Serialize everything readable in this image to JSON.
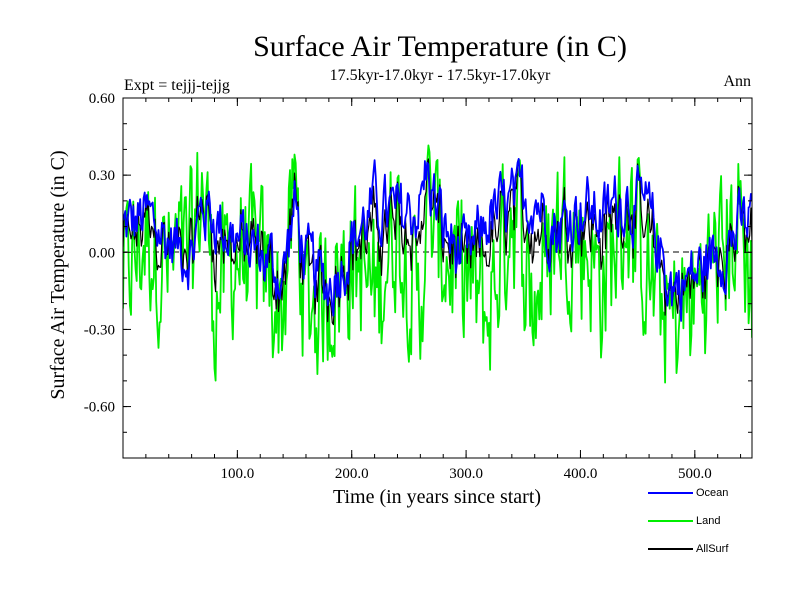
{
  "chart_data": {
    "type": "line",
    "title": "Surface Air Temperature (in C)",
    "subtitle": "17.5kyr-17.0kyr - 17.5kyr-17.0kyr",
    "expt_label": "Expt = tejjj-tejjg",
    "season_label": "Ann",
    "xlabel": "Time (in years since start)",
    "ylabel": "Surface Air Temperature (in C)",
    "xlim": [
      0,
      550
    ],
    "ylim": [
      -0.8,
      0.6
    ],
    "x_ticks": [
      100,
      200,
      300,
      400,
      500
    ],
    "x_tick_labels": [
      "100.0",
      "200.0",
      "300.0",
      "400.0",
      "500.0"
    ],
    "y_ticks": [
      0.6,
      0.3,
      0.0,
      -0.3,
      -0.6
    ],
    "y_tick_labels": [
      "0.60",
      "0.30",
      "0.00",
      "-0.30",
      "-0.60"
    ],
    "legend_position": "bottom-right, below plot",
    "series": [
      {
        "name": "Ocean",
        "color": "#0000ff",
        "amplitude": 0.17,
        "offset": 0.04
      },
      {
        "name": "Land",
        "color": "#00ee00",
        "amplitude": 0.36,
        "offset": -0.05
      },
      {
        "name": "AllSurf",
        "color": "#000000",
        "amplitude": 0.22,
        "offset": 0.0
      }
    ],
    "anchor_points": {
      "x": [
        0,
        20,
        40,
        60,
        70,
        80,
        100,
        120,
        140,
        150,
        160,
        180,
        200,
        220,
        240,
        260,
        265,
        280,
        300,
        320,
        340,
        360,
        380,
        400,
        420,
        440,
        460,
        480,
        500,
        520,
        540,
        550
      ],
      "ocean": [
        0.1,
        0.15,
        0.05,
        0.0,
        0.2,
        0.15,
        0.05,
        0.0,
        -0.1,
        0.2,
        -0.05,
        -0.15,
        0.05,
        0.2,
        0.15,
        0.2,
        0.35,
        0.1,
        -0.05,
        0.15,
        0.2,
        0.25,
        0.1,
        0.2,
        0.15,
        0.25,
        0.15,
        -0.15,
        -0.1,
        0.0,
        0.1,
        0.15
      ],
      "land": [
        -0.2,
        0.1,
        -0.1,
        0.0,
        0.45,
        -0.3,
        0.0,
        -0.1,
        -0.35,
        0.4,
        -0.4,
        -0.25,
        0.0,
        -0.3,
        0.2,
        -0.4,
        0.3,
        0.0,
        -0.2,
        -0.4,
        0.3,
        -0.3,
        0.2,
        0.1,
        -0.2,
        0.3,
        -0.2,
        -0.45,
        -0.3,
        0.0,
        0.2,
        -0.3
      ]
    }
  }
}
